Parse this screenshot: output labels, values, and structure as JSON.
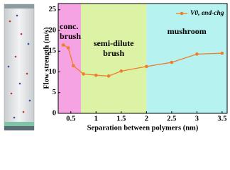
{
  "chart_data": {
    "type": "line",
    "xlabel": "Separation between polymers (nm)",
    "ylabel": "Flow strength (m/s)",
    "x": [
      0.35,
      0.45,
      0.55,
      0.75,
      1.0,
      1.25,
      1.5,
      2.0,
      2.5,
      3.0,
      3.5
    ],
    "series": [
      {
        "name": "V0, end-chg",
        "color": "#f07d2a",
        "values": [
          16.5,
          15.8,
          11.5,
          9.5,
          9.2,
          9.0,
          10.2,
          11.3,
          12.3,
          14.3,
          14.5
        ]
      }
    ],
    "regions": [
      {
        "label": [
          "conc.",
          "brush"
        ],
        "start": 0.25,
        "end": 0.7,
        "color": "#f5a3e3"
      },
      {
        "label": [
          "semi-dilute",
          "brush"
        ],
        "start": 0.7,
        "end": 2.0,
        "color": "#dcf2a4"
      },
      {
        "label": [
          "mushroom"
        ],
        "start": 2.0,
        "end": 3.6,
        "color": "#b5f2f0"
      }
    ],
    "xlim": [
      0.25,
      3.6
    ],
    "xticks": [
      0.5,
      1.0,
      1.5,
      2.0,
      2.5,
      3.0,
      3.5
    ],
    "ylim": [
      0,
      26.5
    ],
    "yticks": [
      0,
      5,
      10,
      15,
      20,
      25
    ],
    "legend": "upper right"
  }
}
